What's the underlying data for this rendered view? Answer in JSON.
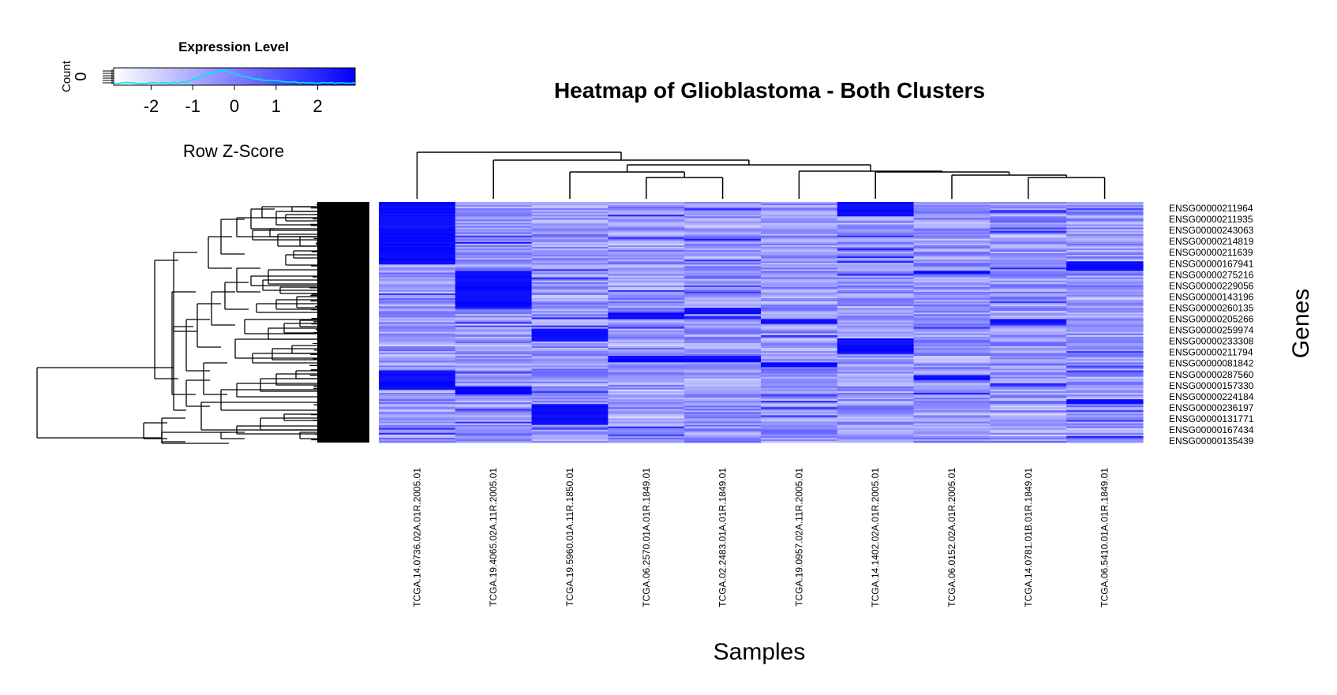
{
  "chart_data": {
    "type": "heatmap",
    "title": "Heatmap of Glioblastoma - Both Clusters",
    "xlabel": "Samples",
    "ylabel": "Genes",
    "samples": [
      "TCGA.14.0736.02A.01R.2005.01",
      "TCGA.19.4065.02A.11R.2005.01",
      "TCGA.19.5960.01A.11R.1850.01",
      "TCGA.06.2570.01A.01R.1849.01",
      "TCGA.02.2483.01A.01R.1849.01",
      "TCGA.19.0957.02A.11R.2005.01",
      "TCGA.14.1402.02A.01R.2005.01",
      "TCGA.06.0152.02A.01R.2005.01",
      "TCGA.14.0781.01B.01R.1849.01",
      "TCGA.06.5410.01A.01R.1849.01"
    ],
    "genes": [
      "ENSG00000211964",
      "ENSG00000211935",
      "ENSG00000243063",
      "ENSG00000214819",
      "ENSG00000211639",
      "ENSG00000167941",
      "ENSG00000275216",
      "ENSG00000229056",
      "ENSG00000143196",
      "ENSG00000260135",
      "ENSG00000205266",
      "ENSG00000259974",
      "ENSG00000233308",
      "ENSG00000211794",
      "ENSG00000081842",
      "ENSG00000287560",
      "ENSG00000157330",
      "ENSG00000224184",
      "ENSG00000236197",
      "ENSG00000131771",
      "ENSG00000167434",
      "ENSG00000135439"
    ],
    "colors": {
      "low": "#ffffff",
      "high": "#0000ff",
      "histogram": "#00e5ee"
    },
    "legend": {
      "title": "Expression Level",
      "xlabel": "Row Z-Score",
      "ylabel": "Count",
      "count_tick": "0",
      "ticks": [
        "-2",
        "-1",
        "0",
        "1",
        "2"
      ],
      "range": [
        -2.9,
        2.9
      ]
    },
    "high_blocks": [
      {
        "sample": 0,
        "from": 0.0,
        "to": 0.26
      },
      {
        "sample": 0,
        "from": 0.7,
        "to": 0.78
      },
      {
        "sample": 1,
        "from": 0.29,
        "to": 0.44
      },
      {
        "sample": 1,
        "from": 0.77,
        "to": 0.8
      },
      {
        "sample": 2,
        "from": 0.53,
        "to": 0.58
      },
      {
        "sample": 2,
        "from": 0.84,
        "to": 0.93
      },
      {
        "sample": 3,
        "from": 0.46,
        "to": 0.49
      },
      {
        "sample": 3,
        "from": 0.64,
        "to": 0.67
      },
      {
        "sample": 4,
        "from": 0.44,
        "to": 0.47
      },
      {
        "sample": 4,
        "from": 0.64,
        "to": 0.67
      },
      {
        "sample": 5,
        "from": 0.49,
        "to": 0.51
      },
      {
        "sample": 5,
        "from": 0.67,
        "to": 0.69
      },
      {
        "sample": 6,
        "from": 0.0,
        "to": 0.06
      },
      {
        "sample": 6,
        "from": 0.57,
        "to": 0.63
      },
      {
        "sample": 7,
        "from": 0.29,
        "to": 0.3
      },
      {
        "sample": 7,
        "from": 0.72,
        "to": 0.74
      },
      {
        "sample": 8,
        "from": 0.49,
        "to": 0.51
      },
      {
        "sample": 9,
        "from": 0.25,
        "to": 0.29
      },
      {
        "sample": 9,
        "from": 0.82,
        "to": 0.84
      }
    ]
  }
}
